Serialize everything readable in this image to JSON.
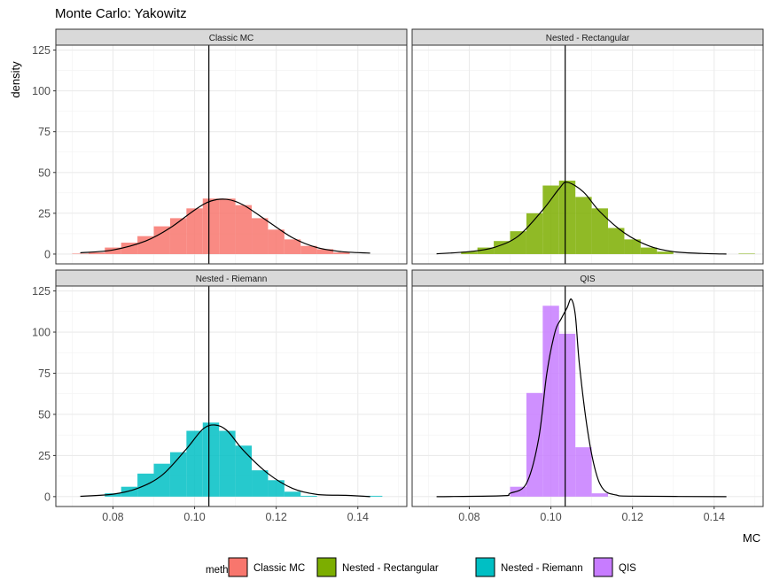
{
  "chart_data": {
    "type": "bar",
    "title": "Monte Carlo: Yakowitz",
    "xlabel": "MC",
    "ylabel": "density",
    "xlim": [
      0.066,
      0.152
    ],
    "ylim": [
      -6,
      128
    ],
    "xticks": [
      0.08,
      0.1,
      0.12,
      0.14
    ],
    "xtick_labels": [
      "0.08",
      "0.10",
      "0.12",
      "0.14"
    ],
    "yticks": [
      0,
      25,
      50,
      75,
      100,
      125
    ],
    "ytick_labels": [
      "0",
      "25",
      "50",
      "75",
      "100",
      "125"
    ],
    "vline": 0.1035,
    "grid": true,
    "bin_width": 0.004,
    "legend": {
      "title": "method",
      "position": "bottom"
    },
    "series": [
      {
        "name": "Classic MC",
        "color": "#F8766D",
        "hist": [
          [
            0.072,
            0.3
          ],
          [
            0.076,
            1
          ],
          [
            0.08,
            4
          ],
          [
            0.084,
            7
          ],
          [
            0.088,
            11
          ],
          [
            0.092,
            17
          ],
          [
            0.096,
            22
          ],
          [
            0.1,
            28
          ],
          [
            0.104,
            34
          ],
          [
            0.108,
            34
          ],
          [
            0.112,
            30
          ],
          [
            0.116,
            22
          ],
          [
            0.12,
            15
          ],
          [
            0.124,
            9
          ],
          [
            0.128,
            5
          ],
          [
            0.132,
            3
          ],
          [
            0.136,
            1
          ]
        ],
        "density": [
          [
            0.072,
            0.8
          ],
          [
            0.08,
            2.5
          ],
          [
            0.088,
            8
          ],
          [
            0.094,
            16
          ],
          [
            0.1,
            27
          ],
          [
            0.104,
            32.5
          ],
          [
            0.108,
            33.5
          ],
          [
            0.112,
            30
          ],
          [
            0.118,
            20
          ],
          [
            0.124,
            10
          ],
          [
            0.13,
            4
          ],
          [
            0.136,
            1.5
          ],
          [
            0.143,
            0.6
          ]
        ]
      },
      {
        "name": "Nested - Rectangular",
        "color": "#7CAE00",
        "hist": [
          [
            0.08,
            1.5
          ],
          [
            0.084,
            4
          ],
          [
            0.088,
            8
          ],
          [
            0.092,
            14
          ],
          [
            0.096,
            25
          ],
          [
            0.1,
            42
          ],
          [
            0.104,
            45
          ],
          [
            0.108,
            35
          ],
          [
            0.112,
            28
          ],
          [
            0.116,
            16
          ],
          [
            0.12,
            9
          ],
          [
            0.124,
            4
          ],
          [
            0.128,
            1.5
          ],
          [
            0.148,
            0.3
          ]
        ],
        "density": [
          [
            0.072,
            0.2
          ],
          [
            0.08,
            1.5
          ],
          [
            0.086,
            4
          ],
          [
            0.092,
            11
          ],
          [
            0.098,
            27
          ],
          [
            0.102,
            40
          ],
          [
            0.104,
            44
          ],
          [
            0.108,
            38
          ],
          [
            0.112,
            26
          ],
          [
            0.118,
            13
          ],
          [
            0.124,
            5
          ],
          [
            0.13,
            1.5
          ],
          [
            0.137,
            0.4
          ],
          [
            0.143,
            0
          ]
        ]
      },
      {
        "name": "Nested - Riemann",
        "color": "#00BFC4",
        "hist": [
          [
            0.08,
            2
          ],
          [
            0.084,
            6
          ],
          [
            0.088,
            14
          ],
          [
            0.092,
            20
          ],
          [
            0.096,
            27
          ],
          [
            0.1,
            40
          ],
          [
            0.104,
            45
          ],
          [
            0.108,
            40
          ],
          [
            0.112,
            31
          ],
          [
            0.116,
            16
          ],
          [
            0.12,
            10
          ],
          [
            0.124,
            3
          ],
          [
            0.128,
            0.5
          ],
          [
            0.144,
            0.5
          ]
        ],
        "density": [
          [
            0.072,
            0.2
          ],
          [
            0.08,
            1.5
          ],
          [
            0.086,
            5
          ],
          [
            0.092,
            13
          ],
          [
            0.098,
            29
          ],
          [
            0.102,
            41
          ],
          [
            0.105,
            43.5
          ],
          [
            0.108,
            40
          ],
          [
            0.112,
            28
          ],
          [
            0.118,
            14
          ],
          [
            0.124,
            5
          ],
          [
            0.13,
            1.3
          ],
          [
            0.137,
            0.8
          ],
          [
            0.143,
            0
          ]
        ]
      },
      {
        "name": "QIS",
        "color": "#C77CFF",
        "hist": [
          [
            0.092,
            6
          ],
          [
            0.096,
            63
          ],
          [
            0.1,
            116
          ],
          [
            0.104,
            99
          ],
          [
            0.108,
            30
          ],
          [
            0.112,
            2
          ]
        ],
        "density": [
          [
            0.072,
            0
          ],
          [
            0.088,
            0.5
          ],
          [
            0.09,
            2
          ],
          [
            0.094,
            8
          ],
          [
            0.097,
            35
          ],
          [
            0.099,
            75
          ],
          [
            0.101,
            100
          ],
          [
            0.1025,
            108
          ],
          [
            0.104,
            115
          ],
          [
            0.105,
            120
          ],
          [
            0.106,
            110
          ],
          [
            0.107,
            80
          ],
          [
            0.109,
            40
          ],
          [
            0.111,
            15
          ],
          [
            0.113,
            4
          ],
          [
            0.116,
            1
          ],
          [
            0.12,
            0.3
          ],
          [
            0.143,
            0
          ]
        ]
      }
    ]
  }
}
